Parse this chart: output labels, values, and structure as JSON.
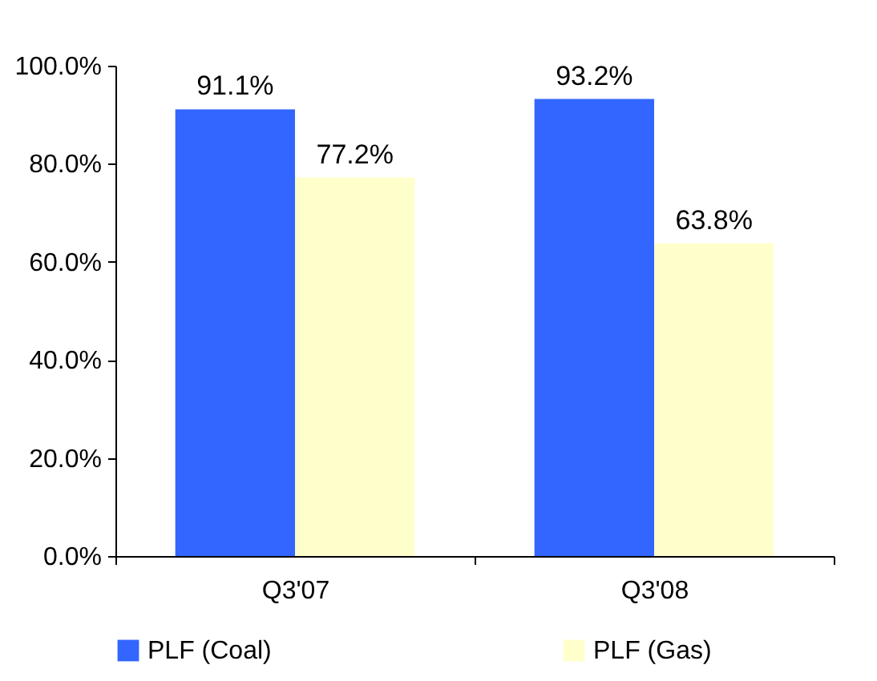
{
  "chart_data": {
    "type": "bar",
    "categories": [
      "Q3'07",
      "Q3'08"
    ],
    "series": [
      {
        "name": "PLF (Coal)",
        "color": "#3366ff",
        "values": [
          91.1,
          93.2
        ],
        "value_labels": [
          "91.1%",
          "93.2%"
        ]
      },
      {
        "name": "PLF (Gas)",
        "color": "#ffffcc",
        "values": [
          77.2,
          63.8
        ],
        "value_labels": [
          "77.2%",
          "63.8%"
        ]
      }
    ],
    "ylim": [
      0,
      100
    ],
    "yticks": [
      {
        "value": 0,
        "label": "0.0%"
      },
      {
        "value": 20,
        "label": "20.0%"
      },
      {
        "value": 40,
        "label": "40.0%"
      },
      {
        "value": 60,
        "label": "60.0%"
      },
      {
        "value": 80,
        "label": "80.0%"
      },
      {
        "value": 100,
        "label": "100.0%"
      }
    ],
    "grid": false,
    "legend": "bottom"
  }
}
